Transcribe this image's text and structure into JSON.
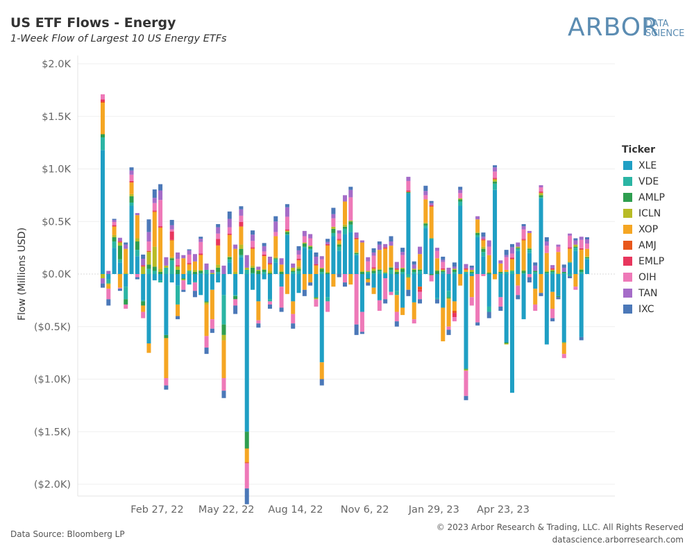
{
  "header": {
    "title": "US ETF Flows - Energy",
    "subtitle": "1-Week Flow of Largest 10 US Energy ETFs"
  },
  "logo": {
    "main": "ARBOR",
    "line1": "DATA",
    "line2": "SCIENCE",
    "color": "#5b8cb2"
  },
  "footer": {
    "source": "Data Source: Bloomberg LP",
    "copyright": "© 2023 Arbor Research & Trading, LLC. All Rights Reserved",
    "site": "datascience.arborresearch.com"
  },
  "legend": {
    "title": "Ticker",
    "placement": "right"
  },
  "chart_data": {
    "type": "bar",
    "stacked": true,
    "xlabel": "",
    "ylabel": "Flow (Millions USD)",
    "ylim": [
      -2000,
      2000
    ],
    "yticks": [
      2000,
      1500,
      1000,
      500,
      0,
      -500,
      -1000,
      -1500,
      -2000
    ],
    "ytick_labels": [
      "$2.0K",
      "$1.5K",
      "$1.0K",
      "$0.5K",
      "$0.0K",
      "($0.5K)",
      "($1.0K)",
      "($1.5K)",
      "($2.0K)"
    ],
    "xtick_labels": [
      {
        "label": "Feb 27, 22",
        "index": 8
      },
      {
        "label": "May 22, 22",
        "index": 20
      },
      {
        "label": "Aug 14, 22",
        "index": 32
      },
      {
        "label": "Nov 6, 22",
        "index": 44
      },
      {
        "label": "Jan 29, 23",
        "index": 56
      },
      {
        "label": "Apr 23, 23",
        "index": 68
      }
    ],
    "grid": true,
    "series": [
      {
        "name": "XLE",
        "color": "#1f9fc4",
        "values": [
          1180,
          -50,
          250,
          110,
          -120,
          650,
          170,
          -250,
          -660,
          -60,
          -60,
          -580,
          -80,
          -110,
          -40,
          -100,
          -70,
          -200,
          -260,
          -150,
          -80,
          -200,
          110,
          -200,
          160,
          -1500,
          -150,
          -260,
          -50,
          -240,
          110,
          -120,
          370,
          -260,
          -180,
          250,
          230,
          -220,
          -840,
          -220,
          360,
          220,
          380,
          400,
          180,
          -360,
          -40,
          -130,
          -250,
          -40,
          -170,
          -160,
          -320,
          770,
          -270,
          -120,
          440,
          330,
          -230,
          -320,
          -160,
          -260,
          650,
          -900,
          -20,
          350,
          170,
          -310,
          800,
          -220,
          -650,
          -1130,
          220,
          -430,
          200,
          -140,
          720,
          -670,
          -170,
          -210,
          -650,
          110,
          220,
          -600,
          140
        ]
      },
      {
        "name": "VDE",
        "color": "#2bb5a4",
        "values": [
          120,
          -40,
          60,
          30,
          -120,
          30,
          60,
          -10,
          50,
          30,
          -20,
          60,
          130,
          -180,
          0,
          30,
          -10,
          10,
          40,
          0,
          20,
          -280,
          30,
          -10,
          20,
          40,
          10,
          0,
          20,
          -20,
          30,
          0,
          10,
          20,
          30,
          10,
          10,
          0,
          20,
          -40,
          30,
          40,
          50,
          70,
          10,
          0,
          20,
          10,
          30,
          10,
          40,
          -40,
          20,
          -30,
          20,
          30,
          20,
          10,
          -10,
          20,
          -60,
          20,
          40,
          20,
          10,
          20,
          40,
          -50,
          60,
          10,
          20,
          30,
          20,
          10,
          30,
          20,
          10,
          10,
          20,
          0,
          10,
          -20,
          30,
          20,
          10
        ]
      },
      {
        "name": "AMLP",
        "color": "#2e9e4f",
        "values": [
          30,
          0,
          40,
          130,
          -50,
          60,
          80,
          -40,
          40,
          40,
          20,
          -30,
          20,
          40,
          -10,
          0,
          20,
          20,
          -10,
          0,
          40,
          -100,
          20,
          -30,
          60,
          -160,
          50,
          30,
          20,
          10,
          10,
          20,
          20,
          10,
          20,
          30,
          20,
          -10,
          30,
          10,
          40,
          20,
          20,
          30,
          10,
          20,
          -10,
          20,
          10,
          0,
          20,
          20,
          30,
          10,
          20,
          10,
          20,
          -10,
          30,
          10,
          -10,
          20,
          20,
          -10,
          10,
          20,
          30,
          10,
          20,
          10,
          -10,
          0,
          10,
          20,
          10,
          10,
          20,
          10,
          10,
          -10,
          10,
          0,
          10,
          20,
          10
        ]
      },
      {
        "name": "ICLN",
        "color": "#b8bb26",
        "values": [
          -40,
          -10,
          20,
          30,
          10,
          20,
          30,
          70,
          120,
          190,
          30,
          20,
          10,
          30,
          -10,
          10,
          20,
          10,
          -20,
          10,
          30,
          -50,
          10,
          20,
          40,
          20,
          20,
          10,
          10,
          20,
          10,
          10,
          10,
          30,
          20,
          10,
          10,
          -10,
          10,
          10,
          20,
          10,
          20,
          10,
          10,
          10,
          10,
          20,
          10,
          10,
          10,
          20,
          10,
          -10,
          10,
          10,
          10,
          0,
          10,
          10,
          -10,
          10,
          10,
          -10,
          20,
          10,
          20,
          10,
          20,
          0,
          -10,
          10,
          10,
          10,
          10,
          0,
          20,
          10,
          10,
          10,
          -10,
          10,
          20,
          10,
          10
        ]
      },
      {
        "name": "XOP",
        "color": "#f5a623",
        "values": [
          300,
          -40,
          80,
          -130,
          230,
          110,
          220,
          -60,
          -90,
          330,
          390,
          -380,
          160,
          -110,
          150,
          50,
          80,
          140,
          -300,
          -280,
          180,
          -360,
          200,
          220,
          170,
          -130,
          160,
          -180,
          120,
          60,
          200,
          60,
          -190,
          -120,
          60,
          -150,
          -80,
          80,
          -160,
          250,
          -120,
          30,
          220,
          -100,
          120,
          270,
          -30,
          -60,
          180,
          220,
          200,
          -160,
          -70,
          -110,
          -160,
          140,
          220,
          300,
          110,
          -320,
          -260,
          -90,
          -110,
          20,
          -200,
          120,
          60,
          160,
          -50,
          80,
          20,
          100,
          -110,
          280,
          140,
          -150,
          -180,
          170,
          -160,
          200,
          -100,
          120,
          -120,
          180,
          70
        ]
      },
      {
        "name": "AMJ",
        "color": "#e8571b",
        "values": [
          10,
          0,
          5,
          5,
          0,
          5,
          0,
          5,
          10,
          5,
          5,
          0,
          5,
          5,
          0,
          5,
          0,
          5,
          0,
          0,
          5,
          0,
          5,
          0,
          5,
          -10,
          5,
          0,
          5,
          5,
          0,
          0,
          5,
          0,
          5,
          0,
          0,
          5,
          0,
          5,
          0,
          5,
          0,
          0,
          5,
          0,
          0,
          5,
          0,
          5,
          0,
          5,
          0,
          5,
          0,
          -30,
          0,
          5,
          0,
          5,
          0,
          -20,
          0,
          5,
          0,
          0,
          5,
          0,
          5,
          0,
          0,
          5,
          0,
          5,
          0,
          0,
          5,
          0,
          5,
          0,
          0,
          5,
          0,
          5,
          0
        ]
      },
      {
        "name": "EMLP",
        "color": "#e8365d",
        "values": [
          20,
          0,
          10,
          10,
          0,
          10,
          0,
          10,
          0,
          10,
          10,
          0,
          80,
          10,
          0,
          10,
          0,
          10,
          0,
          0,
          60,
          0,
          10,
          0,
          40,
          0,
          10,
          0,
          10,
          10,
          0,
          0,
          10,
          0,
          10,
          0,
          0,
          10,
          0,
          10,
          0,
          10,
          0,
          0,
          10,
          0,
          0,
          10,
          0,
          10,
          0,
          10,
          0,
          10,
          0,
          -20,
          0,
          10,
          0,
          10,
          0,
          -40,
          0,
          10,
          0,
          0,
          10,
          0,
          10,
          0,
          0,
          10,
          0,
          10,
          0,
          0,
          10,
          0,
          10,
          0,
          0,
          10,
          0,
          10,
          0
        ]
      },
      {
        "name": "OIH",
        "color": "#ee79b8",
        "values": [
          50,
          -100,
          30,
          -10,
          -40,
          60,
          -30,
          -60,
          90,
          70,
          250,
          -70,
          20,
          60,
          -90,
          80,
          -80,
          110,
          -110,
          -90,
          50,
          -120,
          60,
          -60,
          60,
          -240,
          60,
          -30,
          30,
          -30,
          40,
          -200,
          120,
          -90,
          40,
          60,
          70,
          -70,
          80,
          -100,
          80,
          50,
          -80,
          220,
          -480,
          -190,
          90,
          110,
          -100,
          -200,
          -30,
          -90,
          120,
          90,
          -40,
          -70,
          40,
          -60,
          70,
          60,
          -30,
          -40,
          50,
          -240,
          -80,
          -460,
          -20,
          80,
          60,
          -90,
          120,
          40,
          -90,
          90,
          -30,
          -60,
          40,
          70,
          -90,
          50,
          -40,
          110,
          -30,
          80,
          50
        ]
      },
      {
        "name": "TAN",
        "color": "#a56cc8",
        "values": [
          -50,
          30,
          20,
          30,
          40,
          40,
          20,
          60,
          90,
          50,
          90,
          80,
          40,
          60,
          30,
          40,
          70,
          30,
          60,
          30,
          60,
          80,
          80,
          40,
          60,
          120,
          60,
          30,
          50,
          60,
          100,
          60,
          90,
          40,
          40,
          50,
          40,
          70,
          30,
          20,
          40,
          30,
          60,
          70,
          50,
          20,
          40,
          30,
          50,
          30,
          40,
          60,
          30,
          40,
          40,
          70,
          40,
          20,
          30,
          20,
          60,
          20,
          30,
          40,
          20,
          30,
          20,
          60,
          40,
          30,
          20,
          60,
          40,
          30,
          20,
          50,
          20,
          40,
          30,
          20,
          40,
          20,
          40,
          30,
          40
        ]
      },
      {
        "name": "IXC",
        "color": "#4b78b8",
        "values": [
          -40,
          -60,
          10,
          -20,
          20,
          30,
          -20,
          40,
          120,
          80,
          60,
          -40,
          50,
          -30,
          -20,
          10,
          -60,
          20,
          -60,
          -40,
          30,
          -70,
          70,
          -80,
          30,
          -150,
          40,
          -40,
          30,
          -40,
          50,
          -40,
          30,
          -50,
          40,
          -60,
          -30,
          40,
          -60,
          30,
          60,
          -30,
          -40,
          30,
          -100,
          -20,
          -30,
          40,
          30,
          -40,
          50,
          -50,
          40,
          -60,
          30,
          -40,
          50,
          20,
          -40,
          30,
          -50,
          40,
          30,
          -40,
          20,
          -30,
          40,
          -60,
          20,
          -40,
          50,
          30,
          -40,
          20,
          -50,
          30,
          -30,
          40,
          -30,
          -20,
          30,
          -20,
          20,
          -30,
          20
        ]
      }
    ]
  }
}
